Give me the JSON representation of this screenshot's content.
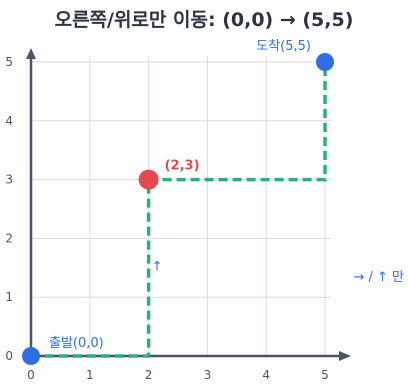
{
  "title": "오른쪽/위로만 이동: (0,0) → (5,5)",
  "grid": {
    "x_ticks": [
      "0",
      "1",
      "2",
      "3",
      "4",
      "5"
    ],
    "y_ticks": [
      "0",
      "1",
      "2",
      "3",
      "4",
      "5"
    ]
  },
  "labels": {
    "start": "출발(0,0)",
    "goal": "도착(5,5)",
    "waypoint": "(2,3)",
    "up_arrow": "↑",
    "legend": "→ / ↑ 만"
  },
  "points": {
    "start": {
      "x": 0,
      "y": 0
    },
    "waypoint": {
      "x": 2,
      "y": 3
    },
    "goal": {
      "x": 5,
      "y": 5
    }
  },
  "path": [
    {
      "x": 0,
      "y": 0
    },
    {
      "x": 2,
      "y": 0
    },
    {
      "x": 2,
      "y": 3
    },
    {
      "x": 5,
      "y": 3
    },
    {
      "x": 5,
      "y": 5
    }
  ],
  "colors": {
    "grid": "#d5dbe6",
    "axis": "#4a5668",
    "path": "#22b573",
    "start": "#2f6fe4",
    "goal": "#2f6fe4",
    "waypoint": "#e5484d",
    "title": "#2d3340",
    "tick": "#4a5668",
    "label_blue": "#2f6fe4",
    "label_red": "#e5484d"
  }
}
